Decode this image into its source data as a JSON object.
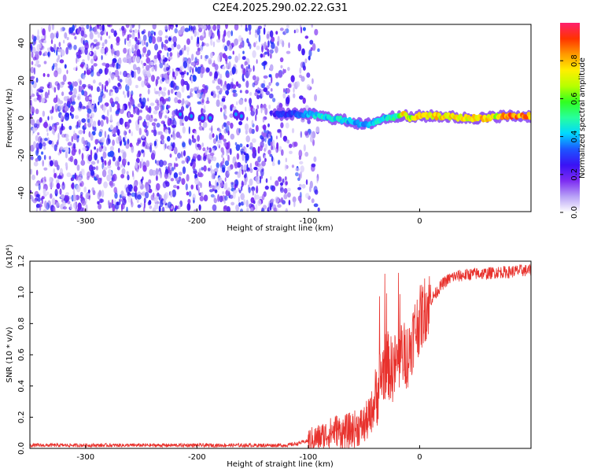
{
  "title": "C2E4.2025.290.02.22.G31",
  "colorbar": {
    "label": "Normalized spectral amplitude",
    "ticks": [
      0.0,
      0.2,
      0.4,
      0.6,
      0.8
    ],
    "tick_labels": [
      "0.0",
      "0.2",
      "0.4",
      "0.6",
      "0.8"
    ],
    "colors": [
      "#ffffff",
      "#b8a2f6",
      "#7d2cf2",
      "#3a12f5",
      "#1c55ff",
      "#00d9ff",
      "#27ff9c",
      "#31ff1f",
      "#b8ff00",
      "#ffef00",
      "#ff9a00",
      "#ff3300",
      "#ff1f6e"
    ]
  },
  "chart_data": [
    {
      "type": "heatmap",
      "name": "spectrogram",
      "xlabel": "Height of straight line (km)",
      "ylabel": "Frequency (Hz)",
      "xlim": [
        -350,
        100
      ],
      "ylim": [
        -50,
        50
      ],
      "xticks": [
        -300,
        -200,
        -100,
        0
      ],
      "xtick_labels": [
        "-300",
        "-200",
        "-100",
        "0"
      ],
      "yticks": [
        -40,
        -20,
        0,
        20,
        40
      ],
      "ytick_labels": [
        "-40",
        "-20",
        "0",
        "20",
        "40"
      ],
      "noise_region_x": [
        -350,
        -115
      ],
      "signal_ridge": {
        "x": [
          -130,
          -110,
          -100,
          -90,
          -80,
          -70,
          -60,
          -55,
          -50,
          -45,
          -40,
          -30,
          -20,
          -15,
          -10,
          0,
          20,
          40,
          60,
          70,
          80,
          90,
          100
        ],
        "y": [
          2,
          2,
          2,
          1,
          0,
          -1,
          -2,
          -3,
          -4,
          -3,
          -2,
          0,
          1,
          2,
          0,
          1,
          1,
          0,
          0,
          1,
          1,
          1,
          1
        ],
        "amplitude": [
          0.3,
          0.35,
          0.45,
          0.5,
          0.5,
          0.5,
          0.45,
          0.45,
          0.4,
          0.45,
          0.5,
          0.5,
          0.55,
          0.85,
          0.7,
          0.85,
          0.85,
          0.85,
          0.85,
          0.8,
          0.95,
          0.95,
          0.95
        ]
      }
    },
    {
      "type": "line",
      "name": "snr",
      "xlabel": "Height of straight line (km)",
      "ylabel": "SNR (10 * v/v)",
      "yscale_label": "(x10⁴)",
      "xlim": [
        -350,
        100
      ],
      "ylim": [
        0,
        1.2
      ],
      "xticks": [
        -300,
        -200,
        -100,
        0
      ],
      "xtick_labels": [
        "-300",
        "-200",
        "-100",
        "0"
      ],
      "yticks": [
        0.0,
        0.2,
        0.4,
        0.6,
        0.8,
        1.0,
        1.2
      ],
      "ytick_labels": [
        "0.0",
        "0.2",
        "0.4",
        "0.6",
        "0.8",
        "1.0",
        "1.2"
      ],
      "color": "#e8312c",
      "series": [
        {
          "name": "SNR",
          "x": [
            -350,
            -300,
            -250,
            -200,
            -150,
            -120,
            -110,
            -100,
            -90,
            -80,
            -75,
            -70,
            -60,
            -50,
            -45,
            -40,
            -35,
            -30,
            -25,
            -20,
            -15,
            -10,
            -5,
            0,
            5,
            10,
            15,
            20,
            25,
            30,
            40,
            50,
            60,
            70,
            80,
            90,
            100
          ],
          "y": [
            0.02,
            0.02,
            0.02,
            0.02,
            0.02,
            0.02,
            0.03,
            0.05,
            0.07,
            0.1,
            0.12,
            0.1,
            0.12,
            0.15,
            0.2,
            0.3,
            0.45,
            0.55,
            0.5,
            0.55,
            0.6,
            0.6,
            0.75,
            0.82,
            0.9,
            0.95,
            1.0,
            1.05,
            1.08,
            1.1,
            1.11,
            1.12,
            1.12,
            1.13,
            1.13,
            1.14,
            1.14
          ]
        }
      ]
    }
  ]
}
